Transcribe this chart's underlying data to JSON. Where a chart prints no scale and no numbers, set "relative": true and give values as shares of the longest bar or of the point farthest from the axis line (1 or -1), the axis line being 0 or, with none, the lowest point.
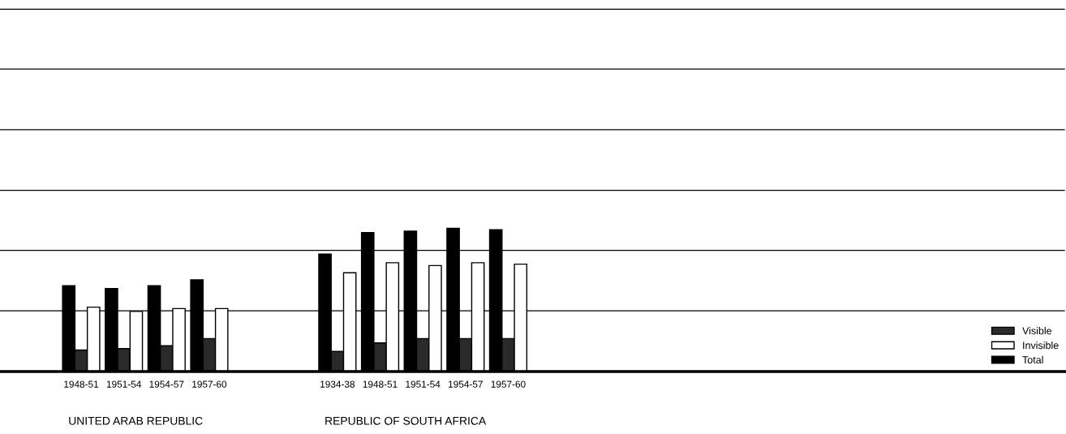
{
  "chart_data": {
    "type": "bar",
    "relative": true,
    "categories": [
      "1948-51",
      "1951-54",
      "1954-57",
      "1957-60",
      null,
      null,
      "1934-38",
      "1948-51",
      "1951-54",
      "1954-57",
      "1957-60"
    ],
    "series": [
      {
        "name": "Total",
        "color": "#000000",
        "values": [
          0.6,
          0.58,
          0.6,
          0.64,
          null,
          null,
          0.82,
          0.97,
          0.98,
          1.0,
          0.99
        ]
      },
      {
        "name": "Visible",
        "color": "#2a2a2a",
        "values": [
          0.15,
          0.16,
          0.18,
          0.23,
          null,
          null,
          0.14,
          0.2,
          0.23,
          0.23,
          0.23
        ]
      },
      {
        "name": "Invisible",
        "color": "#ffffff",
        "values": [
          0.45,
          0.42,
          0.44,
          0.44,
          null,
          null,
          0.69,
          0.76,
          0.74,
          0.76,
          0.75
        ]
      }
    ],
    "annotations": [
      "UNITED ARAB REPUBLIC",
      "REPUBLIC OF SOUTH AFRICA"
    ],
    "ref_lines": [
      {
        "axis": "y",
        "value": 0.424
      },
      {
        "axis": "y",
        "value": 0.847
      },
      {
        "axis": "y",
        "value": 1.266
      },
      {
        "axis": "y",
        "value": 1.689
      },
      {
        "axis": "y",
        "value": 2.113
      },
      {
        "axis": "y",
        "value": 2.531
      }
    ],
    "legend": "bottom right",
    "tick_labels": "x"
  }
}
